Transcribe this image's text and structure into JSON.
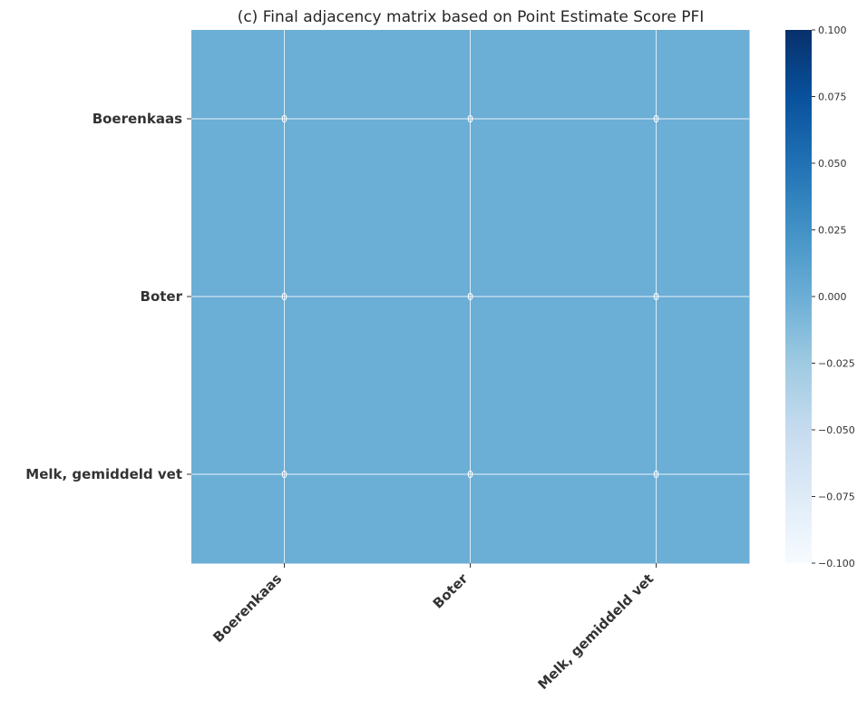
{
  "chart_data": {
    "type": "heatmap",
    "title": "(c) Final adjacency matrix based on Point Estimate Score PFI",
    "row_labels": [
      "Boerenkaas",
      "Boter",
      "Melk, gemiddeld vet"
    ],
    "col_labels": [
      "Boerenkaas",
      "Boter",
      "Melk, gemiddeld vet"
    ],
    "values": [
      [
        0,
        0,
        0
      ],
      [
        0,
        0,
        0
      ],
      [
        0,
        0,
        0
      ]
    ],
    "cell_annotations": [
      [
        "0",
        "0",
        "0"
      ],
      [
        "0",
        "0",
        "0"
      ],
      [
        "0",
        "0",
        "0"
      ]
    ],
    "colorbar": {
      "range": [
        -0.1,
        0.1
      ],
      "ticks": [
        0.1,
        0.075,
        0.05,
        0.025,
        0.0,
        -0.025,
        -0.05,
        -0.075,
        -0.1
      ],
      "tick_labels": [
        "0.100",
        "0.075",
        "0.050",
        "0.025",
        "0.000",
        "−0.025",
        "−0.050",
        "−0.075",
        "−0.100"
      ],
      "colormap": "Blues",
      "colormap_stops": [
        "#f7fbff",
        "#deebf7",
        "#c6dbef",
        "#9ecae1",
        "#6baed6",
        "#4292c6",
        "#2171b5",
        "#08519c",
        "#08306b"
      ]
    },
    "xlabel": "",
    "ylabel": "",
    "grid": true,
    "grid_color": "#ffffff"
  }
}
